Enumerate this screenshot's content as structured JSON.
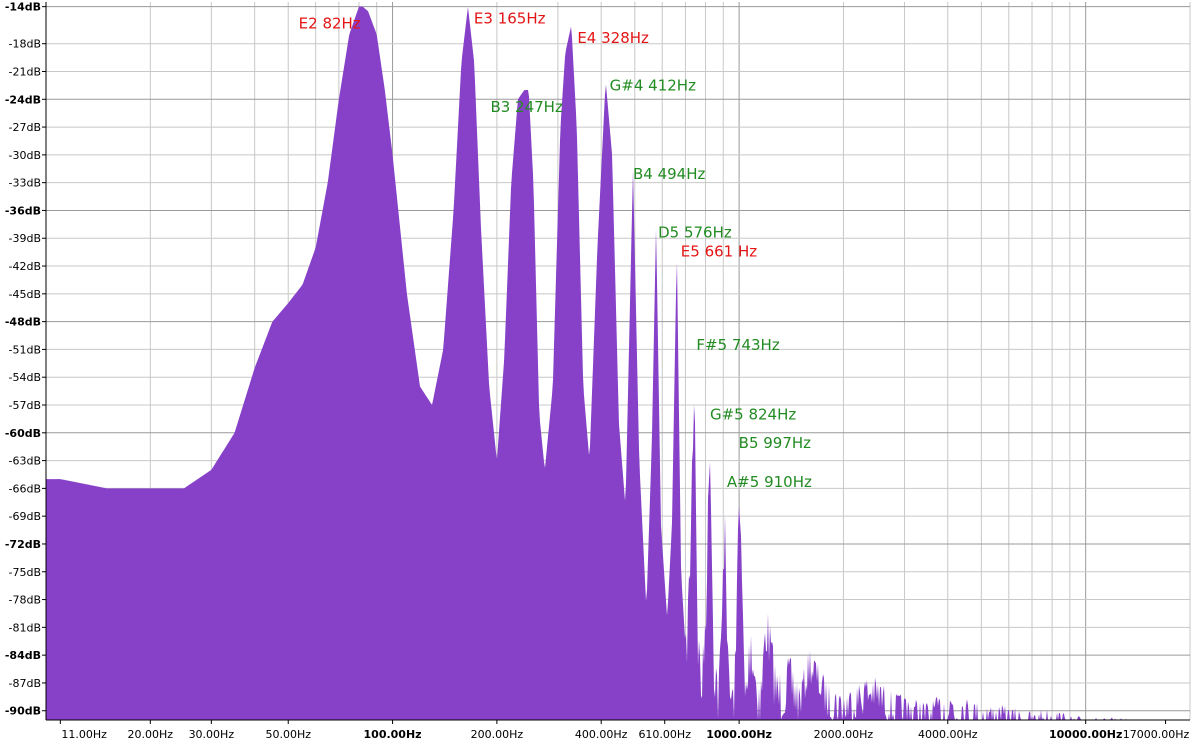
{
  "chart_data": {
    "type": "area",
    "title": "",
    "xlabel": "",
    "ylabel": "",
    "x_scale": "log",
    "xlim": [
      10,
      20000
    ],
    "ylim": [
      -91,
      -13.5
    ],
    "grid": true,
    "legend": "none",
    "colors": {
      "fill": "#8641c8",
      "grid": "#c8c8c8",
      "grid_major": "#9a9a9a",
      "note_red": "#e31414",
      "note_green": "#228b22"
    },
    "y_ticks": [
      {
        "value": -14,
        "label": "-14dB",
        "major": true
      },
      {
        "value": -18,
        "label": "-18dB",
        "major": false
      },
      {
        "value": -21,
        "label": "-21dB",
        "major": false
      },
      {
        "value": -24,
        "label": "-24dB",
        "major": true
      },
      {
        "value": -27,
        "label": "-27dB",
        "major": false
      },
      {
        "value": -30,
        "label": "-30dB",
        "major": false
      },
      {
        "value": -33,
        "label": "-33dB",
        "major": false
      },
      {
        "value": -36,
        "label": "-36dB",
        "major": true
      },
      {
        "value": -39,
        "label": "-39dB",
        "major": false
      },
      {
        "value": -42,
        "label": "-42dB",
        "major": false
      },
      {
        "value": -45,
        "label": "-45dB",
        "major": false
      },
      {
        "value": -48,
        "label": "-48dB",
        "major": true
      },
      {
        "value": -51,
        "label": "-51dB",
        "major": false
      },
      {
        "value": -54,
        "label": "-54dB",
        "major": false
      },
      {
        "value": -57,
        "label": "-57dB",
        "major": false
      },
      {
        "value": -60,
        "label": "-60dB",
        "major": true
      },
      {
        "value": -63,
        "label": "-63dB",
        "major": false
      },
      {
        "value": -66,
        "label": "-66dB",
        "major": false
      },
      {
        "value": -69,
        "label": "-69dB",
        "major": false
      },
      {
        "value": -72,
        "label": "-72dB",
        "major": true
      },
      {
        "value": -75,
        "label": "-75dB",
        "major": false
      },
      {
        "value": -78,
        "label": "-78dB",
        "major": false
      },
      {
        "value": -81,
        "label": "-81dB",
        "major": false
      },
      {
        "value": -84,
        "label": "-84dB",
        "major": true
      },
      {
        "value": -87,
        "label": "-87dB",
        "major": false
      },
      {
        "value": -90,
        "label": "-90dB",
        "major": true
      }
    ],
    "x_ticks": [
      {
        "value": 11,
        "label": "11.00Hz",
        "major": false
      },
      {
        "value": 20,
        "label": "20.00Hz",
        "major": false
      },
      {
        "value": 30,
        "label": "30.00Hz",
        "major": false
      },
      {
        "value": 50,
        "label": "50.00Hz",
        "major": false
      },
      {
        "value": 100,
        "label": "100.00Hz",
        "major": true
      },
      {
        "value": 200,
        "label": "200.00Hz",
        "major": false
      },
      {
        "value": 400,
        "label": "400.00Hz",
        "major": false
      },
      {
        "value": 610,
        "label": "610.00Hz",
        "major": false
      },
      {
        "value": 1000,
        "label": "1000.00Hz",
        "major": true
      },
      {
        "value": 2000,
        "label": "2000.00Hz",
        "major": false
      },
      {
        "value": 4000,
        "label": "4000.00Hz",
        "major": false
      },
      {
        "value": 10000,
        "label": "10000.00Hz",
        "major": true
      },
      {
        "value": 17000,
        "label": "17000.00Hz",
        "major": false
      }
    ],
    "x_grid": [
      10,
      20,
      30,
      40,
      50,
      60,
      70,
      80,
      90,
      100,
      200,
      300,
      400,
      500,
      600,
      700,
      800,
      900,
      1000,
      2000,
      3000,
      4000,
      5000,
      6000,
      7000,
      8000,
      9000,
      10000,
      20000
    ],
    "peaks": [
      {
        "label": "E2 82Hz",
        "freq": 82,
        "db": -14,
        "color": "red"
      },
      {
        "label": "E3 165Hz",
        "freq": 165,
        "db": -14,
        "color": "red"
      },
      {
        "label": "B3 247Hz",
        "freq": 247,
        "db": -23,
        "color": "green"
      },
      {
        "label": "E4 328Hz",
        "freq": 328,
        "db": -16,
        "color": "red"
      },
      {
        "label": "G#4 412Hz",
        "freq": 412,
        "db": -22,
        "color": "green"
      },
      {
        "label": "B4 494Hz",
        "freq": 494,
        "db": -31.5,
        "color": "green"
      },
      {
        "label": "D5 576Hz",
        "freq": 576,
        "db": -37.5,
        "color": "green"
      },
      {
        "label": "E5 661 Hz",
        "freq": 661,
        "db": -40,
        "color": "red"
      },
      {
        "label": "F#5 743Hz",
        "freq": 743,
        "db": -50.5,
        "color": "green"
      },
      {
        "label": "G#5 824Hz",
        "freq": 824,
        "db": -57.5,
        "color": "green"
      },
      {
        "label": "A#5 910Hz",
        "freq": 910,
        "db": -65,
        "color": "green"
      },
      {
        "label": "B5 997Hz",
        "freq": 997,
        "db": -61,
        "color": "green"
      }
    ],
    "spectrum": {
      "x": [
        10,
        11,
        15,
        20,
        25,
        30,
        35,
        40,
        45,
        50,
        55,
        60,
        65,
        70,
        75,
        80,
        82,
        85,
        90,
        95,
        100,
        110,
        120,
        130,
        140,
        150,
        158,
        165,
        172,
        180,
        190,
        200,
        210,
        220,
        230,
        240,
        247,
        255,
        265,
        275,
        290,
        305,
        315,
        328,
        340,
        355,
        370,
        390,
        412,
        430,
        450,
        470,
        494,
        515,
        540,
        560,
        576,
        595,
        620,
        640,
        661,
        680,
        700,
        720,
        743,
        760,
        780,
        800,
        824,
        845,
        870,
        890,
        910,
        930,
        960,
        980,
        997,
        1040,
        1080,
        1150,
        1200,
        1290,
        1400,
        1500,
        1600,
        1800,
        2000,
        2400,
        2800,
        3500,
        4000,
        5000,
        6000,
        7000,
        8000,
        9000,
        10000,
        11500,
        13000,
        15000,
        17000,
        20000
      ],
      "y": [
        -65,
        -65,
        -66,
        -66,
        -66,
        -64,
        -60,
        -53,
        -48,
        -46,
        -44,
        -40,
        -33,
        -24,
        -17,
        -14,
        -14,
        -14.5,
        -17,
        -23,
        -30,
        -45,
        -55,
        -57,
        -51,
        -36,
        -20,
        -14,
        -20,
        -38,
        -55,
        -63,
        -52,
        -33,
        -24,
        -23,
        -23,
        -33,
        -58,
        -64,
        -55,
        -27,
        -19,
        -16,
        -27,
        -55,
        -63,
        -40,
        -22,
        -30,
        -59,
        -68,
        -31.5,
        -63,
        -79,
        -61,
        -37.5,
        -70,
        -80,
        -70,
        -40,
        -75,
        -83,
        -73,
        -50.5,
        -80,
        -85,
        -78,
        -57.5,
        -82,
        -86,
        -80,
        -65,
        -84,
        -87,
        -82,
        -61,
        -87,
        -80,
        -87,
        -78,
        -86,
        -84,
        -87,
        -83,
        -87,
        -88,
        -86,
        -88,
        -89,
        -88,
        -89,
        -89.5,
        -90,
        -89.5,
        -90.5,
        -90.5,
        -90.7,
        -90.8,
        -91,
        -91,
        -91
      ]
    }
  }
}
